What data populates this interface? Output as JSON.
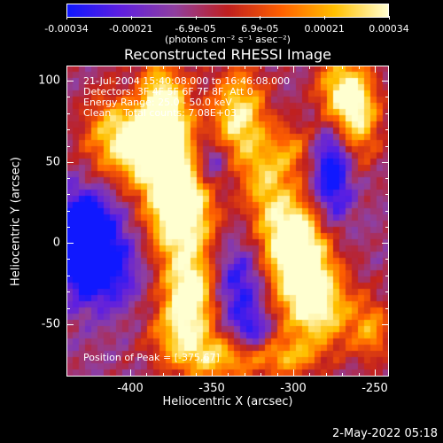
{
  "colorbar": {
    "ticks": [
      "-0.00034",
      "-0.00021",
      "-6.9e-05",
      "6.9e-05",
      "0.00021",
      "0.00034"
    ],
    "units": "(photons cm⁻² s⁻¹ asec⁻²)",
    "colors": [
      "#1018ff",
      "#6020e0",
      "#9040a0",
      "#c02020",
      "#ff6000",
      "#ffc000",
      "#ffffd0"
    ]
  },
  "plot": {
    "title": "Reconstructed RHESSI Image",
    "annotation_lines": [
      "21-Jul-2004 15:40:08.000 to 16:46:08.000",
      "Detectors: 3F 4F 5F 6F 7F 8F, Att 0",
      "Energy Range: 25.0 - 50.0 keV",
      "Clean    Total counts: 7.08E+03"
    ],
    "peak_text": "Position of Peak = [-375,67]",
    "x_ticks": [
      "-400",
      "-350",
      "-300",
      "-250"
    ],
    "y_ticks": [
      "100",
      "50",
      "0",
      "-50"
    ],
    "xlabel": "Heliocentric X (arcsec)",
    "ylabel": "Heliocentric Y (arcsec)"
  },
  "timestamp": "2-May-2022 05:18"
}
